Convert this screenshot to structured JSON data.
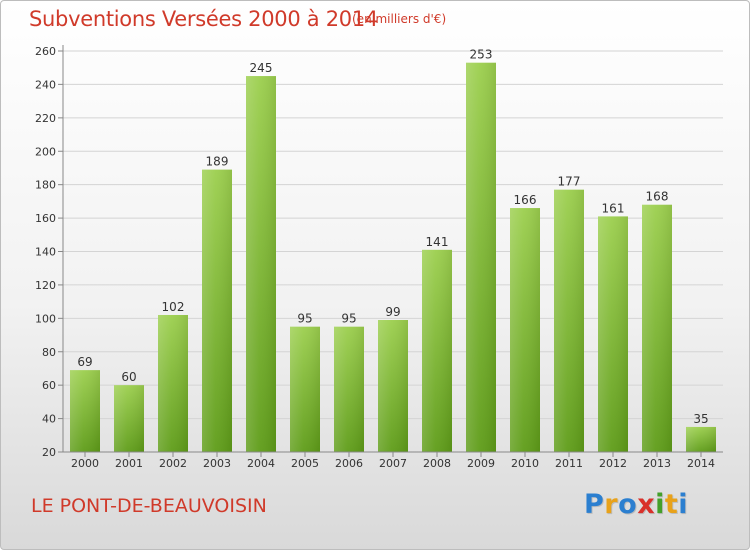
{
  "header": {
    "title": "Subventions Versées 2000 à 2014",
    "unit_note": "(en milliers d'€)"
  },
  "footer": {
    "place": "LE PONT-DE-BEAUVOISIN",
    "logo": {
      "letters": [
        "P",
        "r",
        "o",
        "x",
        "i",
        "t",
        "i"
      ],
      "colors": [
        "#2b7fd0",
        "#e8a21a",
        "#2b7fd0",
        "#d9302a",
        "#43a02a",
        "#e8a21a",
        "#2b7fd0"
      ]
    }
  },
  "chart_data": {
    "type": "bar",
    "title": "Subventions Versées 2000 à 2014",
    "subtitle": "(en milliers d'€)",
    "xlabel": "",
    "ylabel": "",
    "categories": [
      "2000",
      "2001",
      "2002",
      "2003",
      "2004",
      "2005",
      "2006",
      "2007",
      "2008",
      "2009",
      "2010",
      "2011",
      "2012",
      "2013",
      "2014"
    ],
    "values": [
      69,
      60,
      102,
      189,
      245,
      95,
      95,
      99,
      141,
      253,
      166,
      177,
      161,
      168,
      35
    ],
    "ylim": [
      20,
      260
    ],
    "yticks": [
      20,
      40,
      60,
      80,
      100,
      120,
      140,
      160,
      180,
      200,
      220,
      240,
      260
    ],
    "grid": true,
    "colors": {
      "bar_top": "#9ccf4e",
      "bar_bottom": "#5e9c18",
      "grid": "#d4d4d4",
      "axis": "#888888",
      "text": "#333333"
    }
  }
}
